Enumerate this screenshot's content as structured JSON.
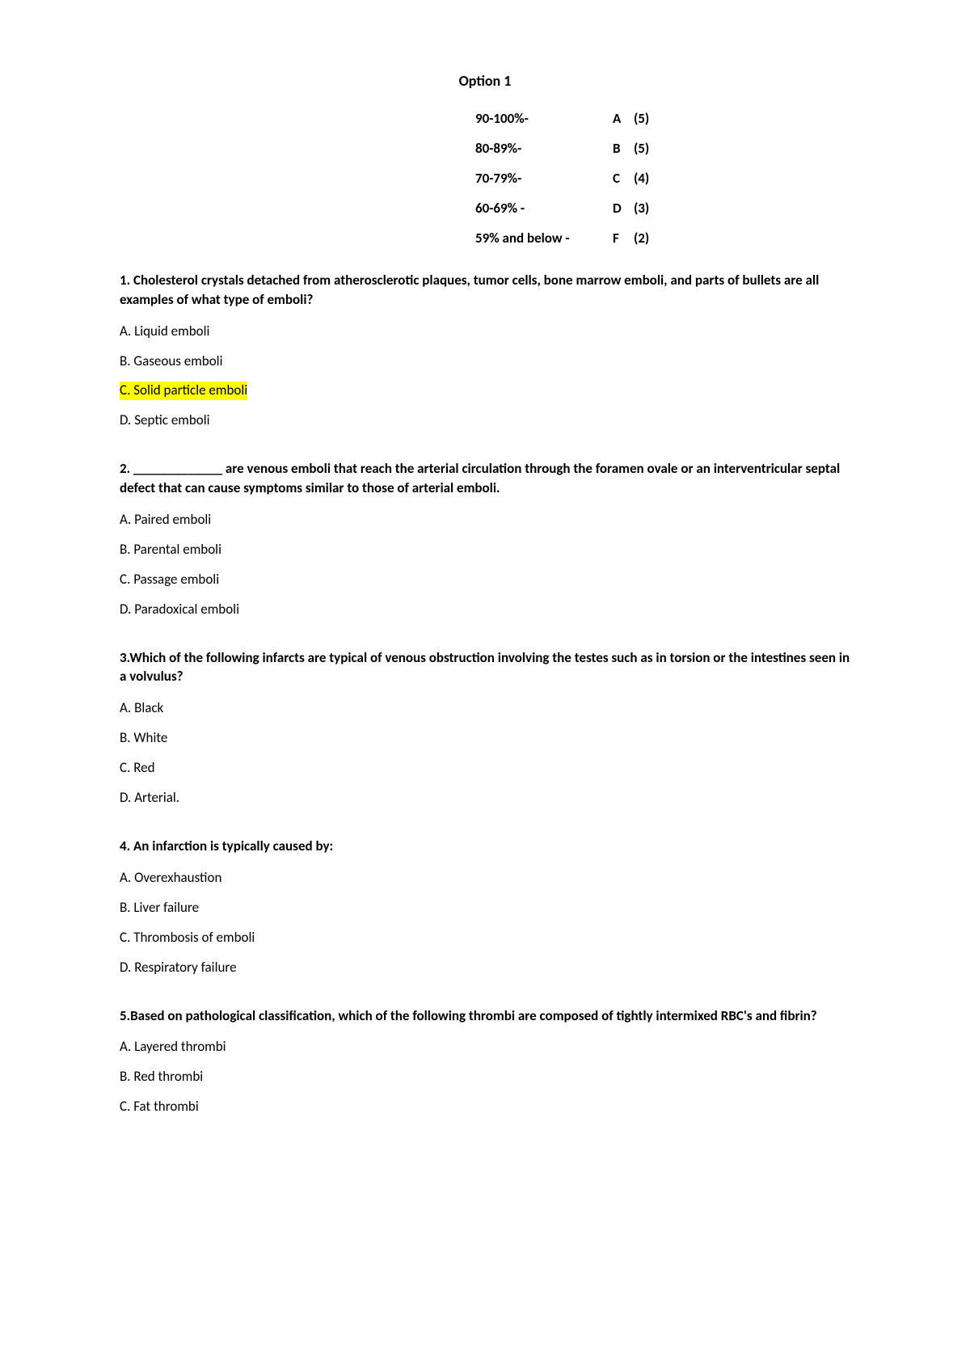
{
  "title": "Option 1",
  "colors": {
    "highlight": "#ffff00",
    "text": "#000000",
    "background": "#ffffff"
  },
  "grade_scale": [
    {
      "range": "90-100%-",
      "letter": "A",
      "paren": "(5)"
    },
    {
      "range": "80-89%-",
      "letter": "B",
      "paren": "(5)"
    },
    {
      "range": "70-79%-",
      "letter": "C",
      "paren": "(4)"
    },
    {
      "range": "60-69% -",
      "letter": "D",
      "paren": "(3)"
    },
    {
      "range": "59% and below  -",
      "letter": "F",
      "paren": "(2)"
    }
  ],
  "questions": [
    {
      "stem": "1. Cholesterol crystals detached from atherosclerotic plaques, tumor cells, bone marrow emboli, and parts of bullets are all examples of what type of emboli?",
      "options": [
        {
          "text": "A. Liquid emboli",
          "highlight": false
        },
        {
          "text": "B. Gaseous emboli",
          "highlight": false
        },
        {
          "text": "C. Solid particle emboli",
          "highlight": true
        },
        {
          "text": "D. Septic emboli",
          "highlight": false
        }
      ]
    },
    {
      "stem": "2. _____________ are venous emboli that reach the arterial circulation through the foramen ovale or an interventricular septal defect that can cause symptoms similar to those of arterial emboli.",
      "options": [
        {
          "text": "A. Paired emboli",
          "highlight": false
        },
        {
          "text": "B. Parental emboli",
          "highlight": false
        },
        {
          "text": "C. Passage emboli",
          "highlight": false
        },
        {
          "text": "D. Paradoxical emboli",
          "highlight": false
        }
      ]
    },
    {
      "stem": "3.Which of the following infarcts are typical of venous obstruction involving the testes such as in torsion or the intestines seen in a volvulus?",
      "options": [
        {
          "text": "A. Black",
          "highlight": false
        },
        {
          "text": "B. White",
          "highlight": false
        },
        {
          "text": "C. Red",
          "highlight": false
        },
        {
          "text": "D. Arterial.",
          "highlight": false
        }
      ]
    },
    {
      "stem": "4. An infarction is typically caused by:",
      "options": [
        {
          "text": "A. Overexhaustion",
          "highlight": false
        },
        {
          "text": "B. Liver failure",
          "highlight": false
        },
        {
          "text": "C. Thrombosis of emboli",
          "highlight": false
        },
        {
          "text": "D. Respiratory failure",
          "highlight": false
        }
      ]
    },
    {
      "stem": "5.Based on pathological classification, which of the following thrombi are composed of tightly intermixed RBC's and fibrin?",
      "options": [
        {
          "text": "A. Layered thrombi",
          "highlight": false
        },
        {
          "text": "B. Red thrombi",
          "highlight": false
        },
        {
          "text": "C. Fat thrombi",
          "highlight": false
        }
      ]
    }
  ]
}
